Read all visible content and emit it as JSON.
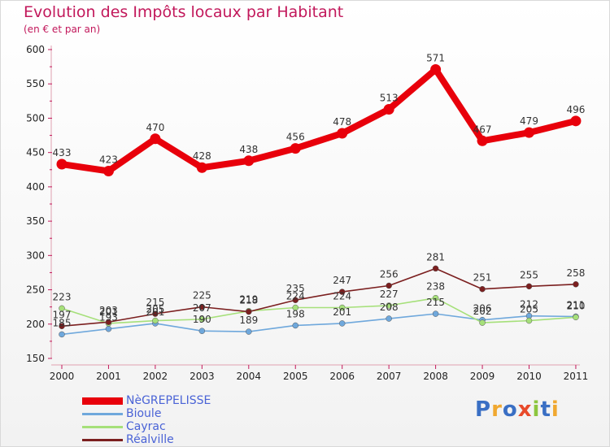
{
  "chart_data": {
    "type": "line",
    "title": "Evolution des Impôts locaux par Habitant",
    "subtitle": "(en € et par an)",
    "xlabel": "",
    "ylabel": "",
    "x": [
      "2000",
      "2001",
      "2002",
      "2003",
      "2004",
      "2005",
      "2006",
      "2007",
      "2008",
      "2009",
      "2010",
      "2011"
    ],
    "ylim": [
      150,
      600
    ],
    "yticks": [
      "150",
      "200",
      "250",
      "300",
      "350",
      "400",
      "450",
      "500",
      "550",
      "600"
    ],
    "grid": false,
    "legend_position": "bottom-left",
    "series": [
      {
        "name": "NèGREPELISSE",
        "color": "#e8000b",
        "values": [
          433,
          423,
          470,
          428,
          438,
          456,
          478,
          513,
          571,
          467,
          479,
          496
        ],
        "labels": [
          "433",
          "423",
          "470",
          "428",
          "438",
          "456",
          "478",
          "513",
          "571",
          "467",
          "479",
          "496"
        ]
      },
      {
        "name": "Bioule",
        "color": "#6fa8dc",
        "values": [
          185,
          193,
          201,
          190,
          189,
          198,
          201,
          208,
          215,
          206,
          212,
          211
        ],
        "labels": [
          "185",
          "193",
          "201",
          "190",
          "189",
          "198",
          "201",
          "208",
          "215",
          "206",
          "212",
          "211"
        ]
      },
      {
        "name": "Cayrac",
        "color": "#a6e07a",
        "values": [
          223,
          201,
          205,
          207,
          219,
          224,
          224,
          227,
          238,
          202,
          205,
          210
        ],
        "labels": [
          "223",
          "201",
          "205",
          "207",
          "219",
          "224",
          "224",
          "227",
          "238",
          "202",
          "205",
          "210"
        ]
      },
      {
        "name": "Réalville",
        "color": "#7b1f1f",
        "values": [
          197,
          203,
          215,
          225,
          218,
          235,
          247,
          256,
          281,
          251,
          255,
          258
        ],
        "labels": [
          "197",
          "203",
          "215",
          "225",
          "218",
          "235",
          "247",
          "256",
          "281",
          "251",
          "255",
          "258"
        ]
      }
    ]
  },
  "brand": {
    "text": "Proxiti",
    "colors": [
      "#3a6fc4",
      "#f0a830",
      "#3a6fc4",
      "#e84a2a",
      "#8cc63f",
      "#3a6fc4",
      "#f0a830"
    ]
  }
}
